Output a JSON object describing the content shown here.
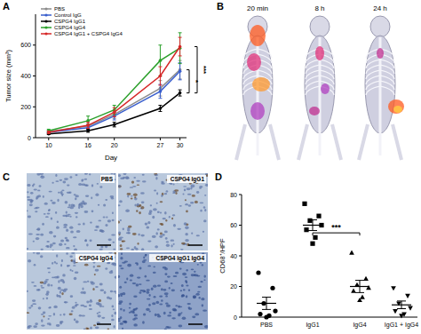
{
  "chart_data": [
    {
      "type": "line",
      "x": [
        10,
        16,
        20,
        27,
        30
      ],
      "xlim": [
        8,
        31
      ],
      "xticks": [
        10,
        16,
        20,
        27,
        30
      ],
      "ylim": [
        0,
        800
      ],
      "yticks": [
        0,
        200,
        400,
        600
      ],
      "x_label": "Day",
      "y_label": "Tumor size (mm³)",
      "legend": "top-left",
      "series": [
        {
          "name": "PBS",
          "color": "#8c8c8c",
          "marker": "circle",
          "values": [
            40,
            75,
            150,
            320,
            440
          ],
          "errors": [
            8,
            15,
            25,
            50,
            60
          ]
        },
        {
          "name": "Control IgG",
          "color": "#3a5fcd",
          "marker": "circle",
          "values": [
            35,
            65,
            140,
            300,
            430
          ],
          "errors": [
            6,
            15,
            25,
            45,
            55
          ]
        },
        {
          "name": "CSPG4 IgG1",
          "color": "#000000",
          "marker": "circle",
          "values": [
            25,
            45,
            85,
            190,
            290
          ],
          "errors": [
            5,
            10,
            15,
            20,
            20
          ]
        },
        {
          "name": "CSPG4 IgG4",
          "color": "#2ca02c",
          "marker": "circle",
          "values": [
            45,
            110,
            180,
            500,
            580
          ],
          "errors": [
            10,
            30,
            30,
            100,
            100
          ]
        },
        {
          "name": "CSPG4 IgG1 + CSPG4 IgG4",
          "color": "#d62728",
          "marker": "circle",
          "values": [
            35,
            80,
            165,
            400,
            590
          ],
          "errors": [
            8,
            20,
            30,
            60,
            60
          ]
        }
      ],
      "annotations": [
        {
          "text": "*",
          "y": [
            290,
            440
          ]
        },
        {
          "text": "***",
          "y": [
            290,
            590
          ]
        }
      ]
    },
    {
      "type": "scatter",
      "categories": [
        "PBS",
        "IgG1",
        "IgG4",
        "IgG1 + IgG4"
      ],
      "ylim": [
        0,
        80
      ],
      "yticks": [
        0,
        20,
        40,
        60,
        80
      ],
      "y_label": "CD68⁺/HPF",
      "color": "#000000",
      "groups": [
        {
          "marker": "circle",
          "values": [
            29,
            19,
            9,
            4,
            2,
            1,
            0
          ],
          "mean": 9,
          "sem": 4
        },
        {
          "marker": "square",
          "values": [
            74,
            66,
            63,
            60,
            57,
            52,
            48
          ],
          "mean": 60,
          "sem": 3.5
        },
        {
          "marker": "triangle",
          "values": [
            42,
            25,
            21,
            19,
            17,
            13,
            11
          ],
          "mean": 20,
          "sem": 4
        },
        {
          "marker": "triangle-down",
          "values": [
            19,
            14,
            9,
            6,
            4,
            2,
            1
          ],
          "mean": 8,
          "sem": 2.5
        }
      ],
      "annotations": [
        {
          "text": "***",
          "between": [
            1,
            2
          ],
          "y": 55
        }
      ]
    }
  ],
  "panels": {
    "labels": [
      "A",
      "B",
      "C",
      "D"
    ],
    "imaging": {
      "captions": [
        "20 min",
        "8 h",
        "24 h"
      ]
    },
    "histology": {
      "captions": [
        "PBS",
        "CSPG4 IgG1",
        "CSPG4 IgG4",
        "CSPG4 IgG1 IgG4"
      ]
    }
  }
}
